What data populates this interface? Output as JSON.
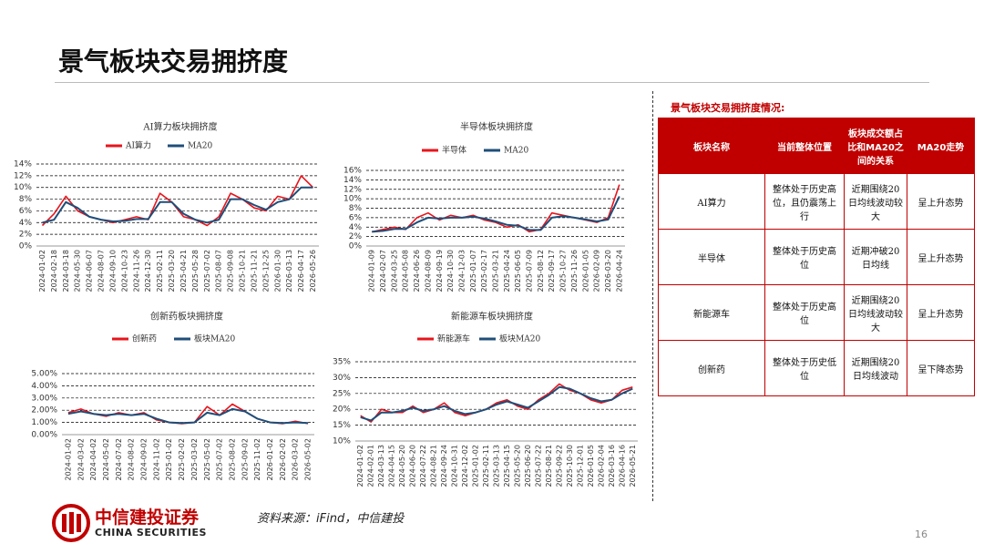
{
  "header": {
    "title": "景气板块交易拥挤度"
  },
  "chart_data": [
    {
      "type": "line",
      "title": "AI算力板块拥挤度",
      "categories": [
        "2024-01-02",
        "2024-02-18",
        "2024-03-18",
        "2024-05-30",
        "2024-06-07",
        "2024-08-07",
        "2024-09-10",
        "2024-10-23",
        "2024-11-26",
        "2024-12-30",
        "2025-02-11",
        "2025-03-20",
        "2025-04-21",
        "2025-05-28",
        "2025-07-02",
        "2025-08-07",
        "2025-09-08",
        "2025-10-21",
        "2025-11-21",
        "2025-12-25",
        "2026-01-30",
        "2026-03-13",
        "2026-04-17",
        "2026-05-26"
      ],
      "series": [
        {
          "name": "AI算力",
          "color": "#e8141c",
          "values": [
            3.5,
            5.5,
            8.5,
            6,
            5,
            4.5,
            4,
            4.5,
            5,
            4.5,
            9,
            7.5,
            5,
            4.5,
            3.5,
            5,
            9,
            8,
            6.5,
            6,
            8.5,
            8,
            12,
            10
          ]
        },
        {
          "name": "MA20",
          "color": "#1f4e79",
          "values": [
            4,
            4.5,
            7.5,
            6.5,
            5,
            4.5,
            4.2,
            4.3,
            4.6,
            4.6,
            7.5,
            7.5,
            5.5,
            4.5,
            4,
            4.5,
            8,
            8,
            7,
            6.2,
            7.5,
            8,
            10,
            10
          ]
        }
      ],
      "ylim": [
        0,
        14
      ],
      "yticks": [
        {
          "value": 0,
          "label": "0%"
        },
        {
          "value": 2,
          "label": "2%"
        },
        {
          "value": 4,
          "label": "4%"
        },
        {
          "value": 6,
          "label": "6%"
        },
        {
          "value": 8,
          "label": "8%"
        },
        {
          "value": 10,
          "label": "10%"
        },
        {
          "value": 12,
          "label": "12%"
        },
        {
          "value": 14,
          "label": "14%"
        }
      ],
      "grid": true
    },
    {
      "type": "line",
      "title": "半导体板块拥挤度",
      "categories": [
        "2024-01-09",
        "2024-02-07",
        "2024-03-25",
        "2024-05-08",
        "2024-06-26",
        "2024-08-09",
        "2024-09-19",
        "2024-10-30",
        "2024-12-03",
        "2025-01-07",
        "2025-02-17",
        "2025-03-21",
        "2025-04-24",
        "2025-06-05",
        "2025-07-09",
        "2025-08-12",
        "2025-09-17",
        "2025-10-27",
        "2025-11-26",
        "2026-01-05",
        "2026-02-09",
        "2026-03-20",
        "2026-04-24"
      ],
      "series": [
        {
          "name": "半导体",
          "color": "#e8141c",
          "values": [
            3,
            3.5,
            4,
            3.5,
            6,
            7,
            5.5,
            6.5,
            6,
            6.5,
            5.5,
            5,
            4,
            4.5,
            3,
            3.5,
            7,
            6.5,
            6,
            5.5,
            5,
            6,
            13
          ]
        },
        {
          "name": "MA20",
          "color": "#1f4e79",
          "values": [
            3,
            3.2,
            3.6,
            3.6,
            5,
            6,
            5.8,
            6,
            6,
            6.2,
            5.8,
            5.2,
            4.5,
            4.3,
            3.4,
            3.4,
            6,
            6.3,
            6,
            5.6,
            5.2,
            5.6,
            10.5
          ]
        }
      ],
      "ylim": [
        0,
        16
      ],
      "yticks": [
        {
          "value": 0,
          "label": "0%"
        },
        {
          "value": 2,
          "label": "2%"
        },
        {
          "value": 4,
          "label": "4%"
        },
        {
          "value": 6,
          "label": "6%"
        },
        {
          "value": 8,
          "label": "8%"
        },
        {
          "value": 10,
          "label": "10%"
        },
        {
          "value": 12,
          "label": "12%"
        },
        {
          "value": 14,
          "label": "14%"
        },
        {
          "value": 16,
          "label": "16%"
        }
      ],
      "grid": true
    },
    {
      "type": "line",
      "title": "创新药板块拥挤度",
      "categories": [
        "2024-01-02",
        "2024-03-02",
        "2024-04-02",
        "2024-05-02",
        "2024-07-02",
        "2024-08-02",
        "2024-09-02",
        "2024-11-02",
        "2025-01-02",
        "2025-02-02",
        "2025-03-02",
        "2025-05-02",
        "2025-07-02",
        "2025-08-02",
        "2025-09-02",
        "2025-11-02",
        "2026-01-02",
        "2026-02-02",
        "2026-03-02",
        "2026-05-02"
      ],
      "series": [
        {
          "name": "创新药",
          "color": "#e8141c",
          "values": [
            1.8,
            2.1,
            1.7,
            1.5,
            1.8,
            1.6,
            1.8,
            1.2,
            1.0,
            0.9,
            1.0,
            2.3,
            1.6,
            2.5,
            1.9,
            1.3,
            1.0,
            0.9,
            1.1,
            0.9
          ]
        },
        {
          "name": "板块MA20",
          "color": "#1f4e79",
          "values": [
            1.7,
            1.9,
            1.7,
            1.6,
            1.7,
            1.6,
            1.7,
            1.3,
            1.0,
            0.95,
            1.0,
            1.8,
            1.6,
            2.1,
            1.9,
            1.3,
            1.0,
            0.95,
            1.0,
            0.95
          ]
        }
      ],
      "ylim": [
        0,
        5
      ],
      "yticks": [
        {
          "value": 0,
          "label": "0.00%"
        },
        {
          "value": 1,
          "label": "1.00%"
        },
        {
          "value": 2,
          "label": "2.00%"
        },
        {
          "value": 3,
          "label": "3.00%"
        },
        {
          "value": 4,
          "label": "4.00%"
        },
        {
          "value": 5,
          "label": "5.00%"
        }
      ],
      "grid": true
    },
    {
      "type": "line",
      "title": "新能源车板块拥挤度",
      "categories": [
        "2024-01-02",
        "2024-02-01",
        "2024-03-13",
        "2024-04-15",
        "2024-05-20",
        "2024-06-20",
        "2024-07-22",
        "2024-08-21",
        "2024-09-24",
        "2024-10-31",
        "2024-12-02",
        "2025-01-02",
        "2025-02-11",
        "2025-03-13",
        "2025-04-15",
        "2025-05-20",
        "2025-06-20",
        "2025-07-22",
        "2025-08-21",
        "2025-09-22",
        "2025-10-30",
        "2025-12-01",
        "2026-01-05",
        "2026-02-04",
        "2026-03-16",
        "2026-04-16",
        "2026-05-21"
      ],
      "series": [
        {
          "name": "新能源车",
          "color": "#e8141c",
          "values": [
            18,
            16,
            20,
            19,
            19,
            21,
            19,
            20,
            22,
            19,
            18,
            19,
            20,
            22,
            23,
            21,
            20,
            23,
            25,
            28,
            26,
            25,
            23,
            22,
            23,
            26,
            27
          ]
        },
        {
          "name": "板块MA20",
          "color": "#1f4e79",
          "values": [
            17.5,
            16.5,
            19,
            19,
            19.5,
            20.5,
            19.5,
            20,
            21,
            19.5,
            18.5,
            19,
            20,
            21.5,
            22.5,
            21.5,
            20.5,
            22.5,
            24.5,
            27,
            26.5,
            25,
            23.5,
            22.5,
            23,
            25,
            26.5
          ]
        }
      ],
      "ylim": [
        10,
        35
      ],
      "yticks": [
        {
          "value": 10,
          "label": "10%"
        },
        {
          "value": 15,
          "label": "15%"
        },
        {
          "value": 20,
          "label": "20%"
        },
        {
          "value": 25,
          "label": "25%"
        },
        {
          "value": 30,
          "label": "30%"
        },
        {
          "value": 35,
          "label": "35%"
        }
      ],
      "grid": true
    }
  ],
  "table": {
    "title": "景气板块交易拥挤度情况:",
    "columns": [
      "板块名称",
      "当前整体位置",
      "板块成交额占比和MA20之间的关系",
      "MA20走势"
    ],
    "rows": [
      [
        "AI算力",
        "整体处于历史高位，且仍震荡上行",
        "近期围绕20日均线波动较大",
        "呈上升态势"
      ],
      [
        "半导体",
        "整体处于历史高位",
        "近期冲破20日均线",
        "呈上升态势"
      ],
      [
        "新能源车",
        "整体处于历史高位",
        "近期围绕20日均线波动较大",
        "呈上升态势"
      ],
      [
        "创新药",
        "整体处于历史低位",
        "近期围绕20日均线波动",
        "呈下降态势"
      ]
    ]
  },
  "source": "资料来源：iFind，中信建投",
  "logo": {
    "name": "中信建投证券",
    "name_en": "CHINA SECURITIES"
  },
  "page_number": "16"
}
